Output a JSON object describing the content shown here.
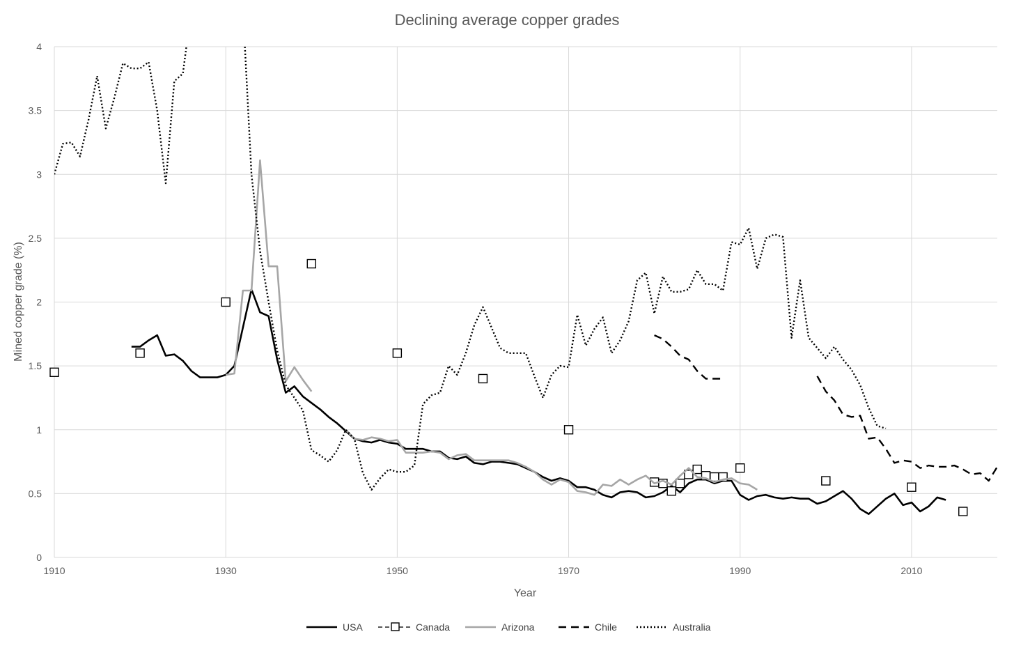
{
  "chart_data": {
    "type": "line",
    "title": "Declining average copper grades",
    "xlabel": "Year",
    "ylabel": "Mined copper grade (%)",
    "xlim": [
      1910,
      2020
    ],
    "ylim": [
      0,
      4
    ],
    "xticks": [
      "1910",
      "1930",
      "1950",
      "1970",
      "1990",
      "2010"
    ],
    "yticks": [
      "0",
      "0.5",
      "1",
      "1.5",
      "2",
      "2.5",
      "3",
      "3.5",
      "4"
    ],
    "grid": true,
    "legend_position": "bottom",
    "series": [
      {
        "name": "USA",
        "style": "solid",
        "color": "#000000",
        "x": [
          1919,
          1920,
          1921,
          1922,
          1923,
          1924,
          1925,
          1926,
          1927,
          1928,
          1929,
          1930,
          1931,
          1932,
          1933,
          1934,
          1935,
          1936,
          1937,
          1938,
          1939,
          1940,
          1941,
          1942,
          1943,
          1944,
          1945,
          1946,
          1947,
          1948,
          1949,
          1950,
          1951,
          1952,
          1953,
          1954,
          1955,
          1956,
          1957,
          1958,
          1959,
          1960,
          1961,
          1962,
          1963,
          1964,
          1965,
          1966,
          1967,
          1968,
          1969,
          1970,
          1971,
          1972,
          1973,
          1974,
          1975,
          1976,
          1977,
          1978,
          1979,
          1980,
          1981,
          1982,
          1983,
          1984,
          1985,
          1986,
          1987,
          1988,
          1989,
          1990,
          1991,
          1992,
          1993,
          1994,
          1995,
          1996,
          1997,
          1998,
          1999,
          2000,
          2001,
          2002,
          2003,
          2004,
          2005,
          2006,
          2007,
          2008,
          2009,
          2010,
          2011,
          2012,
          2013,
          2014
        ],
        "y": [
          1.65,
          1.65,
          1.7,
          1.74,
          1.58,
          1.59,
          1.54,
          1.46,
          1.41,
          1.41,
          1.41,
          1.43,
          1.5,
          1.8,
          2.1,
          1.92,
          1.89,
          1.55,
          1.29,
          1.34,
          1.26,
          1.21,
          1.16,
          1.1,
          1.05,
          0.99,
          0.93,
          0.91,
          0.9,
          0.92,
          0.9,
          0.89,
          0.85,
          0.85,
          0.85,
          0.83,
          0.83,
          0.78,
          0.77,
          0.79,
          0.74,
          0.73,
          0.75,
          0.75,
          0.74,
          0.73,
          0.7,
          0.67,
          0.63,
          0.6,
          0.62,
          0.6,
          0.55,
          0.55,
          0.53,
          0.49,
          0.47,
          0.51,
          0.52,
          0.51,
          0.47,
          0.48,
          0.51,
          0.56,
          0.51,
          0.58,
          0.61,
          0.61,
          0.58,
          0.6,
          0.6,
          0.49,
          0.45,
          0.48,
          0.49,
          0.47,
          0.46,
          0.47,
          0.46,
          0.46,
          0.42,
          0.44,
          0.48,
          0.52,
          0.46,
          0.38,
          0.34,
          0.4,
          0.46,
          0.5,
          0.41,
          0.43,
          0.36,
          0.4,
          0.47,
          0.45
        ]
      },
      {
        "name": "Canada",
        "style": "markers",
        "color": "#595959",
        "x": [
          1910,
          1920,
          1930,
          1940,
          1950,
          1960,
          1970,
          1980,
          1981,
          1982,
          1983,
          1984,
          1985,
          1986,
          1987,
          1988,
          1990,
          2000,
          2010,
          2016
        ],
        "y": [
          1.45,
          1.6,
          2.0,
          2.3,
          1.6,
          1.4,
          1.0,
          0.59,
          0.58,
          0.52,
          0.58,
          0.65,
          0.69,
          0.64,
          0.63,
          0.63,
          0.7,
          0.6,
          0.55,
          0.36
        ]
      },
      {
        "name": "Arizona",
        "style": "solid",
        "color": "#a6a6a6",
        "x": [
          1930,
          1931,
          1932,
          1933,
          1934,
          1935,
          1936,
          1937,
          1938,
          1939,
          1940
        ],
        "y": [
          1.43,
          1.44,
          2.09,
          2.09,
          3.11,
          2.28,
          2.28,
          1.38,
          1.49,
          1.39,
          1.3
        ]
      },
      {
        "name": "Arizona",
        "style": "solid",
        "color": "#a6a6a6",
        "x": [
          1944,
          1945,
          1946,
          1947,
          1948,
          1949,
          1950,
          1951,
          1952,
          1953,
          1954,
          1955,
          1956,
          1957,
          1958,
          1959,
          1960,
          1961,
          1962,
          1963,
          1964,
          1965,
          1966,
          1967,
          1968,
          1969,
          1970,
          1971,
          1972,
          1973,
          1974,
          1975,
          1976,
          1977,
          1978,
          1979,
          1980,
          1981,
          1982,
          1983,
          1984,
          1985,
          1986,
          1987,
          1988,
          1989,
          1990,
          1991,
          1992
        ],
        "y": [
          1.0,
          0.93,
          0.92,
          0.94,
          0.93,
          0.91,
          0.92,
          0.82,
          0.82,
          0.82,
          0.83,
          0.82,
          0.77,
          0.8,
          0.81,
          0.76,
          0.76,
          0.76,
          0.76,
          0.76,
          0.74,
          0.71,
          0.67,
          0.61,
          0.57,
          0.61,
          0.59,
          0.52,
          0.51,
          0.49,
          0.57,
          0.56,
          0.61,
          0.57,
          0.61,
          0.64,
          0.58,
          0.6,
          0.57,
          0.64,
          0.7,
          0.63,
          0.62,
          0.59,
          0.61,
          0.62,
          0.58,
          0.57,
          0.53
        ]
      },
      {
        "name": "Chile",
        "style": "dashed",
        "color": "#000000",
        "x": [
          1980,
          1981,
          1982,
          1983,
          1984,
          1985,
          1986,
          1987,
          1988
        ],
        "y": [
          1.74,
          1.71,
          1.65,
          1.58,
          1.55,
          1.46,
          1.4,
          1.4,
          1.4
        ]
      },
      {
        "name": "Chile",
        "style": "dashed",
        "color": "#000000",
        "x": [
          1999,
          2000,
          2001,
          2002,
          2003,
          2004,
          2005,
          2006,
          2007,
          2008,
          2009,
          2010,
          2011,
          2012,
          2013,
          2014,
          2015,
          2016,
          2017,
          2018,
          2019,
          2020
        ],
        "y": [
          1.42,
          1.3,
          1.23,
          1.12,
          1.1,
          1.11,
          0.93,
          0.94,
          0.85,
          0.74,
          0.76,
          0.75,
          0.7,
          0.72,
          0.71,
          0.71,
          0.72,
          0.69,
          0.65,
          0.66,
          0.6,
          0.71
        ]
      },
      {
        "name": "Australia",
        "style": "dotted",
        "color": "#000000",
        "x": [
          1910,
          1911,
          1912,
          1913,
          1914,
          1915,
          1916,
          1917,
          1918,
          1919,
          1920,
          1921,
          1922,
          1923,
          1924,
          1925,
          1926
        ],
        "y": [
          3.0,
          3.24,
          3.25,
          3.14,
          3.43,
          3.77,
          3.36,
          3.6,
          3.87,
          3.83,
          3.83,
          3.88,
          3.5,
          2.93,
          3.73,
          3.79,
          4.3
        ]
      },
      {
        "name": "Australia",
        "style": "dotted",
        "color": "#000000",
        "x": [
          1932,
          1933,
          1934,
          1935,
          1936,
          1937,
          1938,
          1939,
          1940,
          1941,
          1942,
          1943,
          1944,
          1945,
          1946,
          1947,
          1948,
          1949,
          1950,
          1951,
          1952,
          1953,
          1954,
          1955,
          1956,
          1957,
          1958,
          1959,
          1960,
          1961,
          1962,
          1963,
          1964,
          1965,
          1966,
          1967,
          1968,
          1969,
          1970,
          1971,
          1972,
          1973,
          1974,
          1975,
          1976,
          1977,
          1978,
          1979,
          1980,
          1981,
          1982,
          1983,
          1984,
          1985,
          1986,
          1987,
          1988,
          1989,
          1990,
          1991,
          1992,
          1993,
          1994,
          1995,
          1996,
          1997,
          1998,
          1999,
          2000,
          2001,
          2002,
          2003,
          2004,
          2005,
          2006,
          2007
        ],
        "y": [
          4.3,
          3.0,
          2.4,
          2.0,
          1.62,
          1.35,
          1.25,
          1.15,
          0.84,
          0.8,
          0.75,
          0.84,
          1.0,
          0.93,
          0.66,
          0.53,
          0.62,
          0.69,
          0.67,
          0.67,
          0.72,
          1.2,
          1.27,
          1.29,
          1.5,
          1.43,
          1.6,
          1.82,
          1.96,
          1.8,
          1.64,
          1.6,
          1.6,
          1.6,
          1.42,
          1.25,
          1.43,
          1.5,
          1.49,
          1.9,
          1.66,
          1.79,
          1.88,
          1.6,
          1.7,
          1.85,
          2.17,
          2.23,
          1.91,
          2.2,
          2.08,
          2.08,
          2.1,
          2.25,
          2.14,
          2.14,
          2.09,
          2.47,
          2.45,
          2.58,
          2.26,
          2.5,
          2.53,
          2.51,
          1.72,
          2.17,
          1.72,
          1.64,
          1.56,
          1.65,
          1.55,
          1.47,
          1.35,
          1.17,
          1.03,
          1.01
        ]
      }
    ],
    "legend": [
      {
        "name": "USA",
        "style": "solid",
        "color": "#000000"
      },
      {
        "name": "Canada",
        "style": "markers",
        "color": "#595959"
      },
      {
        "name": "Arizona",
        "style": "solid",
        "color": "#a6a6a6"
      },
      {
        "name": "Chile",
        "style": "dashed",
        "color": "#000000"
      },
      {
        "name": "Australia",
        "style": "dotted",
        "color": "#000000"
      }
    ]
  }
}
